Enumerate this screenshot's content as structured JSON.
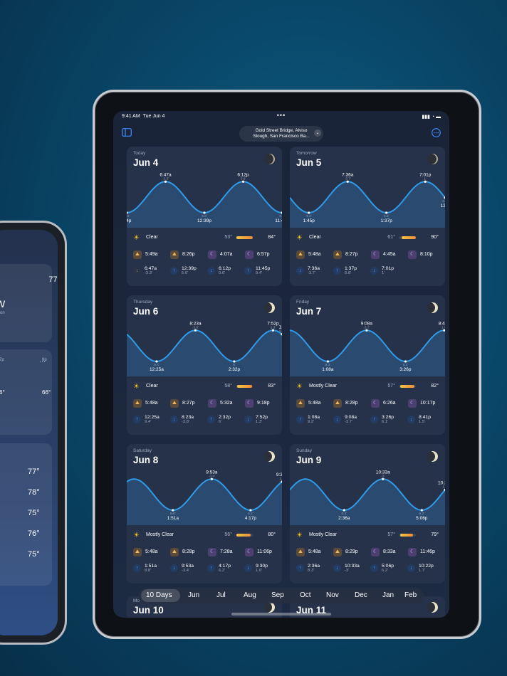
{
  "status": {
    "time": "9:41 AM",
    "date": "Tue Jun 4",
    "dots": "•••",
    "signal": "▮▮▮ ◔ ▬"
  },
  "toolbar": {
    "location_line1": "Gold Street Bridge, Alviso",
    "location_line2": "Slough, San Francisco Ba...",
    "sidebar_icon": "sidebar-icon",
    "more_icon": "ellipsis-circle-icon"
  },
  "days": [
    {
      "label": "Today",
      "date": "Jun 4",
      "condition": "Clear",
      "low": "53°",
      "high": "84°",
      "temp_fill": [
        0.05,
        1.0
      ],
      "sunrise": "5:49a",
      "sunset": "8:26p",
      "moonrise": "4:07a",
      "moonset": "6:57p",
      "tides": [
        {
          "dir": "low",
          "time": "6:47a",
          "height": "-3.3'",
          "past": true
        },
        {
          "dir": "high",
          "time": "12:39p",
          "height": "5.6'"
        },
        {
          "dir": "low",
          "time": "6:12p",
          "height": "0.6'"
        },
        {
          "dir": "high",
          "time": "11:45p",
          "height": "9.4'"
        }
      ],
      "chart_labels": [
        {
          "t": ":04p",
          "h": "7.5'"
        },
        {
          "t": "6:47a",
          "h": "-3.3'"
        },
        {
          "t": "12:39p",
          "h": "5.6'"
        },
        {
          "t": "6:12p",
          "h": "0.6'"
        },
        {
          "t": "11:45p",
          "h": "9.4'"
        }
      ]
    },
    {
      "label": "Tomorrow",
      "date": "Jun 5",
      "condition": "Clear",
      "low": "61°",
      "high": "90°",
      "temp_fill": [
        0.15,
        1.0
      ],
      "sunrise": "5:48a",
      "sunset": "8:27p",
      "moonrise": "4:45a",
      "moonset": "8:10p",
      "tides": [
        {
          "dir": "low",
          "time": "7:36a",
          "height": "-3.7'"
        },
        {
          "dir": "high",
          "time": "1:37p",
          "height": "5.8'"
        },
        {
          "dir": "low",
          "time": "7:01p",
          "height": "1'"
        }
      ],
      "chart_labels": [
        {
          "t": "1:45p",
          "h": "9.4'"
        },
        {
          "t": "7:36a",
          "h": "-3.7'"
        },
        {
          "t": "1:37p",
          "h": "5.8'"
        },
        {
          "t": "7:01p",
          "h": "1'"
        },
        {
          "t": "12:2",
          "h": "9.4'"
        }
      ]
    },
    {
      "label": "Thursday",
      "date": "Jun 6",
      "condition": "Clear",
      "low": "58°",
      "high": "83°",
      "temp_fill": [
        0.1,
        0.95
      ],
      "sunrise": "5:48a",
      "sunset": "8:27p",
      "moonrise": "5:32a",
      "moonset": "9:18p",
      "tides": [
        {
          "dir": "high",
          "time": "12:25a",
          "height": "9.4'"
        },
        {
          "dir": "low",
          "time": "8:23a",
          "height": "-3.8'"
        },
        {
          "dir": "high",
          "time": "2:32p",
          "height": "6'"
        },
        {
          "dir": "low",
          "time": "7:52p",
          "height": "1.3'"
        }
      ],
      "chart_labels": [
        {
          "t": "12:25a",
          "h": "9.4'"
        },
        {
          "t": "8:23a",
          "h": "-3.8'"
        },
        {
          "t": "2:32p",
          "h": "6'"
        },
        {
          "t": "7:52p",
          "h": "1.3'"
        },
        {
          "t": "1:0",
          "h": "9.4'"
        }
      ]
    },
    {
      "label": "Friday",
      "date": "Jun 7",
      "condition": "Mostly Clear",
      "low": "57°",
      "high": "82°",
      "temp_fill": [
        0.08,
        0.92
      ],
      "sunrise": "5:48a",
      "sunset": "8:28p",
      "moonrise": "6:26a",
      "moonset": "10:17p",
      "tides": [
        {
          "dir": "high",
          "time": "1:08a",
          "height": "9.2'"
        },
        {
          "dir": "low",
          "time": "9:08a",
          "height": "-3.7'"
        },
        {
          "dir": "high",
          "time": "3:26p",
          "height": "6.1'"
        },
        {
          "dir": "low",
          "time": "8:41p",
          "height": "1.5'"
        }
      ],
      "chart_labels": [
        {
          "t": "1:08a",
          "h": "9.2'"
        },
        {
          "t": "9:08a",
          "h": "-3.7'"
        },
        {
          "t": "3:26p",
          "h": "6.1'"
        },
        {
          "t": "8:41p",
          "h": "1.5'"
        },
        {
          "t": "",
          "h": ""
        }
      ]
    },
    {
      "label": "Saturday",
      "date": "Jun 8",
      "condition": "Mostly Clear",
      "low": "56°",
      "high": "80°",
      "temp_fill": [
        0.05,
        0.88
      ],
      "sunrise": "5:48a",
      "sunset": "8:28p",
      "moonrise": "7:28a",
      "moonset": "11:06p",
      "tides": [
        {
          "dir": "high",
          "time": "1:51a",
          "height": "8.8'"
        },
        {
          "dir": "low",
          "time": "9:53a",
          "height": "-3.4'"
        },
        {
          "dir": "high",
          "time": "4:17p",
          "height": "6.2'"
        },
        {
          "dir": "low",
          "time": "9:30p",
          "height": "1.6'"
        }
      ],
      "chart_labels": [
        {
          "t": "1:51a",
          "h": "8.8'"
        },
        {
          "t": "9:53a",
          "h": "-3.4'"
        },
        {
          "t": "4:17p",
          "h": "6.2'"
        },
        {
          "t": "9:30p",
          "h": "1.6'"
        },
        {
          "t": "",
          "h": ""
        }
      ]
    },
    {
      "label": "Sunday",
      "date": "Jun 9",
      "condition": "Mostly Clear",
      "low": "57°",
      "high": "79°",
      "temp_fill": [
        0.1,
        0.85
      ],
      "sunrise": "5:48a",
      "sunset": "8:29p",
      "moonrise": "8:33a",
      "moonset": "11:46p",
      "tides": [
        {
          "dir": "high",
          "time": "2:36a",
          "height": "8.3'"
        },
        {
          "dir": "low",
          "time": "10:33a",
          "height": "-3'"
        },
        {
          "dir": "high",
          "time": "5:06p",
          "height": "6.2'"
        },
        {
          "dir": "low",
          "time": "10:22p",
          "height": "1.7'"
        }
      ],
      "chart_labels": [
        {
          "t": "2:36a",
          "h": "8.3'"
        },
        {
          "t": "10:33a",
          "h": "-3'"
        },
        {
          "t": "5:06p",
          "h": "6.2'"
        },
        {
          "t": "10:22p",
          "h": "1.7'"
        },
        {
          "t": "",
          "h": ""
        }
      ]
    }
  ],
  "peek": [
    {
      "label": "Mo",
      "date": "Jun 10"
    },
    {
      "label": "",
      "date": "Jun 11"
    }
  ],
  "months": [
    "10 Days",
    "Jun",
    "Jul",
    "Aug",
    "Sep",
    "Oct",
    "Nov",
    "Dec",
    "Jan",
    "Feb"
  ],
  "left_device": {
    "temp1": "77°",
    "w": "W",
    "sub": "ction",
    "times": [
      "7p",
      "8p"
    ],
    "vals": [
      "6°",
      "66°"
    ],
    "list": [
      "77°",
      "78°",
      "75°",
      "76°",
      "75°"
    ]
  }
}
